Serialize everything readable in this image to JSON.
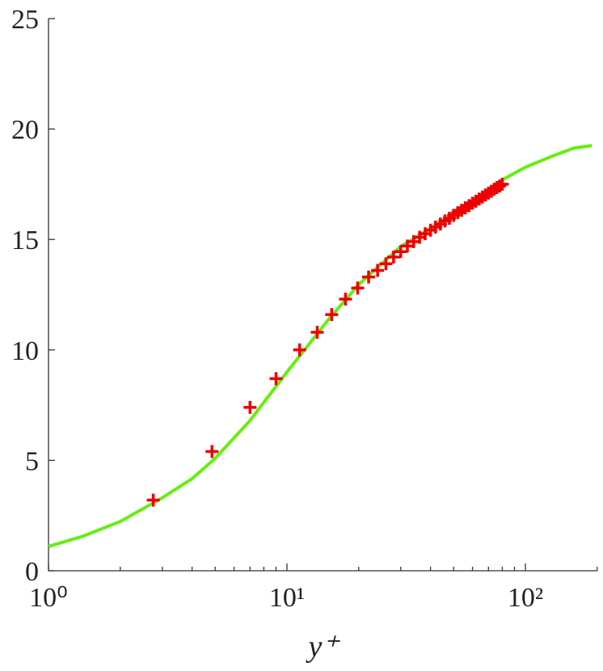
{
  "chart_data": {
    "type": "line",
    "xlabel": "y⁺",
    "xscale": "log",
    "xlim": [
      1,
      200
    ],
    "ylim": [
      0,
      25
    ],
    "xticks": [
      {
        "value": 1,
        "label": "10⁰"
      },
      {
        "value": 10,
        "label": "10¹"
      },
      {
        "value": 100,
        "label": "10²"
      }
    ],
    "xminorticks": [
      2,
      3,
      4,
      5,
      6,
      7,
      8,
      9,
      20,
      30,
      40,
      50,
      60,
      70,
      80,
      90,
      200
    ],
    "yticks": [
      0,
      5,
      10,
      15,
      20,
      25
    ],
    "series": [
      {
        "style": "line",
        "color": "#66ee11",
        "x": [
          1,
          1.4,
          2,
          3,
          4,
          5,
          7,
          10,
          15,
          20,
          30,
          50,
          80,
          100,
          130,
          160,
          190
        ],
        "values": [
          1.1,
          1.57,
          2.23,
          3.3,
          4.17,
          5.09,
          6.8,
          9.0,
          11.4,
          12.96,
          14.68,
          16.14,
          17.7,
          18.27,
          18.78,
          19.14,
          19.25
        ]
      },
      {
        "style": "markers",
        "color": "#ee0000",
        "x": [
          2.75,
          4.85,
          7.0,
          9.0,
          11.3,
          13.4,
          15.4,
          17.6,
          19.8,
          22,
          24,
          26,
          28,
          30,
          32,
          34,
          36,
          38,
          40,
          42,
          44,
          46,
          48,
          50,
          52,
          54,
          56,
          58,
          60,
          62,
          64,
          66,
          68,
          70,
          72,
          74,
          76,
          78,
          80
        ],
        "values": [
          3.2,
          5.4,
          7.4,
          8.7,
          10.0,
          10.8,
          11.6,
          12.3,
          12.8,
          13.3,
          13.6,
          13.9,
          14.2,
          14.45,
          14.7,
          14.9,
          15.1,
          15.26,
          15.42,
          15.56,
          15.7,
          15.84,
          15.96,
          16.09,
          16.21,
          16.32,
          16.43,
          16.53,
          16.64,
          16.73,
          16.83,
          16.92,
          17.01,
          17.1,
          17.18,
          17.27,
          17.35,
          17.42,
          17.5
        ]
      }
    ]
  }
}
